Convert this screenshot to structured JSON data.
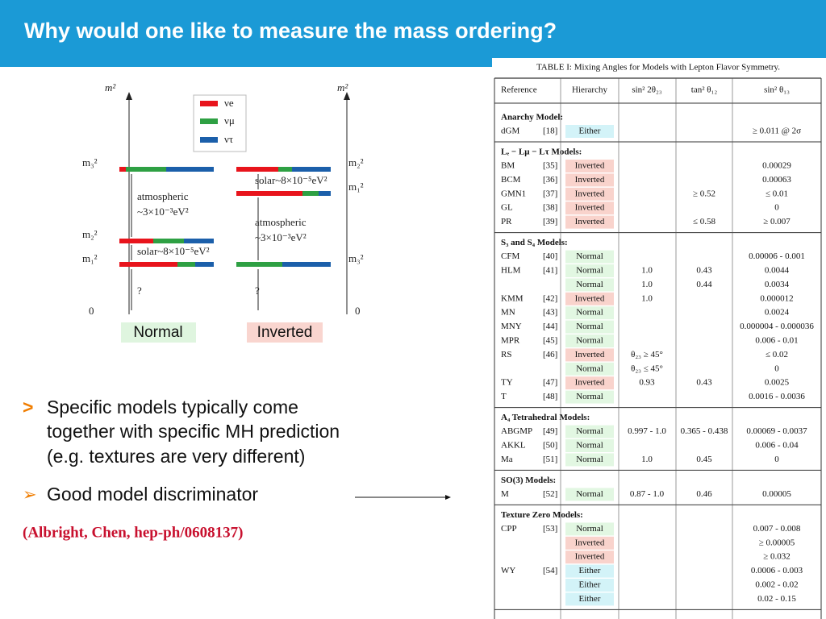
{
  "header": {
    "title": "Why would one like to measure the mass ordering?"
  },
  "diagram": {
    "axis_label": "m²",
    "legend": [
      "νe",
      "νμ",
      "ντ"
    ],
    "level_labels": {
      "m3": "m₃²",
      "m2": "m₂²",
      "m1": "m₁²",
      "zero": "0"
    },
    "atmospheric": [
      "atmospheric",
      "~3×10⁻³eV²"
    ],
    "solar": "solar~8×10⁻⁵eV²",
    "unknown": "?",
    "schemes": [
      "Normal",
      "Inverted"
    ]
  },
  "bullets": [
    {
      "marker": ">",
      "lines": [
        "Specific models typically come",
        "together with specific MH prediction",
        "(e.g. textures are very different)"
      ]
    },
    {
      "marker": "➢",
      "lines": [
        "Good model discriminator"
      ]
    }
  ],
  "citation": "(Albright, Chen, hep-ph/0608137)",
  "table": {
    "caption": "TABLE I: Mixing Angles for Models with Lepton Flavor Symmetry.",
    "headers": [
      "Reference",
      "Hierarchy",
      "sin² 2θ₂₃",
      "tan² θ₁₂",
      "sin² θ₁₃"
    ],
    "sections": [
      {
        "title": "Anarchy Model:",
        "rows": [
          [
            "dGM",
            "[18]",
            "Either",
            null,
            null,
            "≥ 0.011 @ 2σ"
          ]
        ]
      },
      {
        "title": "Lₑ − Lμ − Lτ Models:",
        "rows": [
          [
            "BM",
            "[35]",
            "Inverted",
            null,
            null,
            "0.00029"
          ],
          [
            "BCM",
            "[36]",
            "Inverted",
            null,
            null,
            "0.00063"
          ],
          [
            "GMN1",
            "[37]",
            "Inverted",
            null,
            "≥ 0.52",
            "≤ 0.01"
          ],
          [
            "GL",
            "[38]",
            "Inverted",
            null,
            null,
            "0"
          ],
          [
            "PR",
            "[39]",
            "Inverted",
            null,
            "≤ 0.58",
            "≥ 0.007"
          ]
        ]
      },
      {
        "title": "S₃ and S₄ Models:",
        "rows": [
          [
            "CFM",
            "[40]",
            "Normal",
            null,
            null,
            "0.00006 - 0.001"
          ],
          [
            "HLM",
            "[41]",
            "Normal",
            "1.0",
            "0.43",
            "0.0044"
          ],
          [
            null,
            null,
            "Normal",
            "1.0",
            "0.44",
            "0.0034"
          ],
          [
            "KMM",
            "[42]",
            "Inverted",
            "1.0",
            null,
            "0.000012"
          ],
          [
            "MN",
            "[43]",
            "Normal",
            null,
            null,
            "0.0024"
          ],
          [
            "MNY",
            "[44]",
            "Normal",
            null,
            null,
            "0.000004 - 0.000036"
          ],
          [
            "MPR",
            "[45]",
            "Normal",
            null,
            null,
            "0.006 - 0.01"
          ],
          [
            "RS",
            "[46]",
            "Inverted",
            "θ₂₃ ≥ 45°",
            null,
            "≤ 0.02"
          ],
          [
            null,
            null,
            "Normal",
            "θ₂₃ ≤ 45°",
            null,
            "0"
          ],
          [
            "TY",
            "[47]",
            "Inverted",
            "0.93",
            "0.43",
            "0.0025"
          ],
          [
            "T",
            "[48]",
            "Normal",
            null,
            null,
            "0.0016 - 0.0036"
          ]
        ]
      },
      {
        "title": "A₄ Tetrahedral Models:",
        "rows": [
          [
            "ABGMP",
            "[49]",
            "Normal",
            "0.997 - 1.0",
            "0.365 - 0.438",
            "0.00069 - 0.0037"
          ],
          [
            "AKKL",
            "[50]",
            "Normal",
            null,
            null,
            "0.006 - 0.04"
          ],
          [
            "Ma",
            "[51]",
            "Normal",
            "1.0",
            "0.45",
            "0"
          ]
        ]
      },
      {
        "title": "SO(3) Models:",
        "rows": [
          [
            "M",
            "[52]",
            "Normal",
            "0.87 - 1.0",
            "0.46",
            "0.00005"
          ]
        ]
      },
      {
        "title": "Texture Zero Models:",
        "rows": [
          [
            "CPP",
            "[53]",
            "Normal",
            null,
            null,
            "0.007 - 0.008"
          ],
          [
            null,
            null,
            "Inverted",
            null,
            null,
            "≥ 0.00005"
          ],
          [
            null,
            null,
            "Inverted",
            null,
            null,
            "≥ 0.032"
          ],
          [
            "WY",
            "[54]",
            "Either",
            null,
            null,
            "0.0006 - 0.003"
          ],
          [
            null,
            null,
            "Either",
            null,
            null,
            "0.002 - 0.02"
          ],
          [
            null,
            null,
            "Either",
            null,
            null,
            "0.02 - 0.15"
          ]
        ]
      }
    ]
  }
}
